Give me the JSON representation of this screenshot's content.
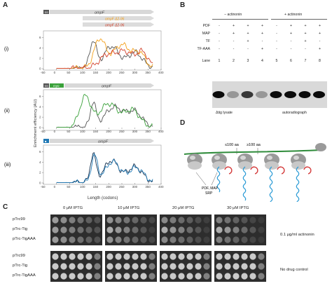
{
  "panel_A": {
    "letter": "A",
    "sub_i": "(i)",
    "sub_ii": "(ii)",
    "sub_iii": "(iii)",
    "gene": "ompF",
    "ss_label": "SS",
    "myo_label": "myo",
    "delta_label_1": "ompF Δ2-96",
    "delta_label_2": "ompF Δ2-96",
    "y_axis_label": "Enrichment efficiency (AU)",
    "x_axis_label": "Length (codons)",
    "x_ticks": [
      "-50",
      "0",
      "50",
      "100",
      "150",
      "200",
      "250",
      "300",
      "350",
      "400"
    ],
    "y_ticks": [
      "0",
      "2",
      "4",
      "6"
    ],
    "colors": {
      "black": "#555555",
      "orange": "#f4a11c",
      "red": "#d2402a",
      "green": "#3aa13a",
      "darkgreen": "#2f6e2f",
      "blue": "#1f78b4",
      "navy": "#14304f"
    }
  },
  "panel_B": {
    "letter": "B",
    "minus_header": "− actinonin",
    "plus_header": "+ actinonin",
    "rows": [
      {
        "label": "PDF",
        "values": [
          "-",
          "+",
          "+",
          "+",
          "-",
          "+",
          "+",
          "+"
        ]
      },
      {
        "label": "MAP",
        "values": [
          "-",
          "+",
          "+",
          "+",
          "-",
          "+",
          "+",
          "+"
        ]
      },
      {
        "label": "TF",
        "values": [
          "-",
          "-",
          "+",
          "-",
          "-",
          "-",
          "+",
          "-"
        ]
      },
      {
        "label": "TF-AAA",
        "values": [
          "-",
          "-",
          "-",
          "+",
          "-",
          "-",
          "-",
          "+"
        ]
      }
    ],
    "lane_label": "Lane",
    "lanes": [
      "1",
      "2",
      "3",
      "4",
      "5",
      "6",
      "7",
      "8"
    ],
    "lysate_label": "Δtig lysate",
    "autorad_label": "autoradiograph"
  },
  "panel_C": {
    "letter": "C",
    "conditions": [
      "0 μM IPTG",
      "10 μM IPTG",
      "20 μM IPTG",
      "30 μM IPTG"
    ],
    "strains": [
      "pTrc99",
      "pTrc-Tig",
      "pTrc-TigAAA"
    ],
    "drug_label": "0.1 μg/ml actinonin",
    "control_label": "No drug control"
  },
  "panel_D": {
    "letter": "D",
    "le100": "≤100 aa",
    "ge100": "≥100 aa",
    "factors_line1": "PDF, MAP",
    "factors_line2": "SRP"
  }
}
